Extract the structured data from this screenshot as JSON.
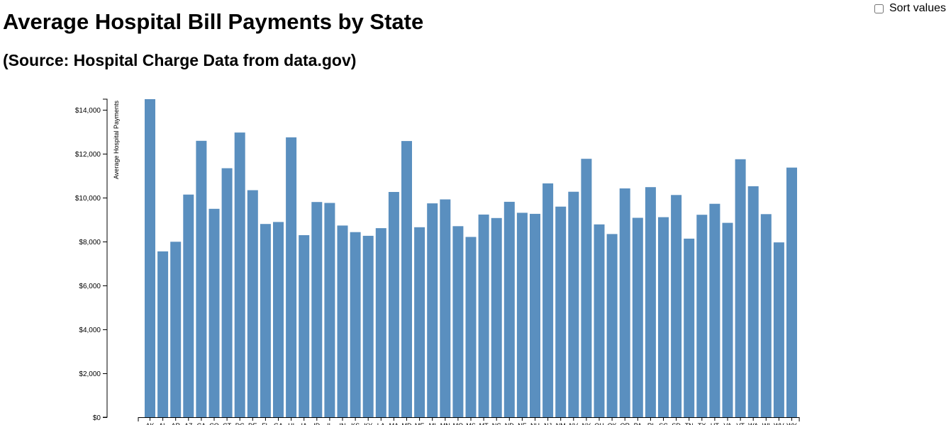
{
  "header": {
    "title": "Average Hospital Bill Payments by State",
    "subtitle": "(Source: Hospital Charge Data from data.gov)"
  },
  "controls": {
    "sort_label": "Sort values",
    "sort_checked": false
  },
  "colors": {
    "bar": "#5a8fbf",
    "axis": "#000000"
  },
  "chart_data": {
    "type": "bar",
    "title": "Average Hospital Bill Payments by State",
    "ylabel": "Average Hospital Payments",
    "xlabel": "",
    "ylim": [
      0,
      14500
    ],
    "yticks": [
      0,
      2000,
      4000,
      6000,
      8000,
      10000,
      12000,
      14000
    ],
    "ytick_labels": [
      "$0",
      "$2,000",
      "$4,000",
      "$6,000",
      "$8,000",
      "$10,000",
      "$12,000",
      "$14,000"
    ],
    "categories": [
      "AK",
      "AL",
      "AR",
      "AZ",
      "CA",
      "CO",
      "CT",
      "DC",
      "DE",
      "FL",
      "GA",
      "HI",
      "IA",
      "ID",
      "IL",
      "IN",
      "KS",
      "KY",
      "LA",
      "MA",
      "MD",
      "ME",
      "MI",
      "MN",
      "MO",
      "MS",
      "MT",
      "NC",
      "ND",
      "NE",
      "NH",
      "NJ",
      "NM",
      "NV",
      "NY",
      "OH",
      "OK",
      "OR",
      "PA",
      "RI",
      "SC",
      "SD",
      "TN",
      "TX",
      "UT",
      "VA",
      "VT",
      "WA",
      "WI",
      "WV",
      "WY"
    ],
    "values": [
      14500,
      7560,
      8000,
      10150,
      12600,
      9500,
      11350,
      12980,
      10350,
      8810,
      8900,
      12760,
      8300,
      9810,
      9770,
      8740,
      8440,
      8270,
      8620,
      10270,
      12590,
      8660,
      9750,
      9930,
      8710,
      8220,
      9240,
      9080,
      9820,
      9320,
      9270,
      10660,
      9600,
      10280,
      11780,
      8790,
      8350,
      10430,
      9090,
      10490,
      9120,
      10130,
      8140,
      9230,
      9730,
      8860,
      11760,
      10530,
      9260,
      7970,
      11380
    ]
  }
}
